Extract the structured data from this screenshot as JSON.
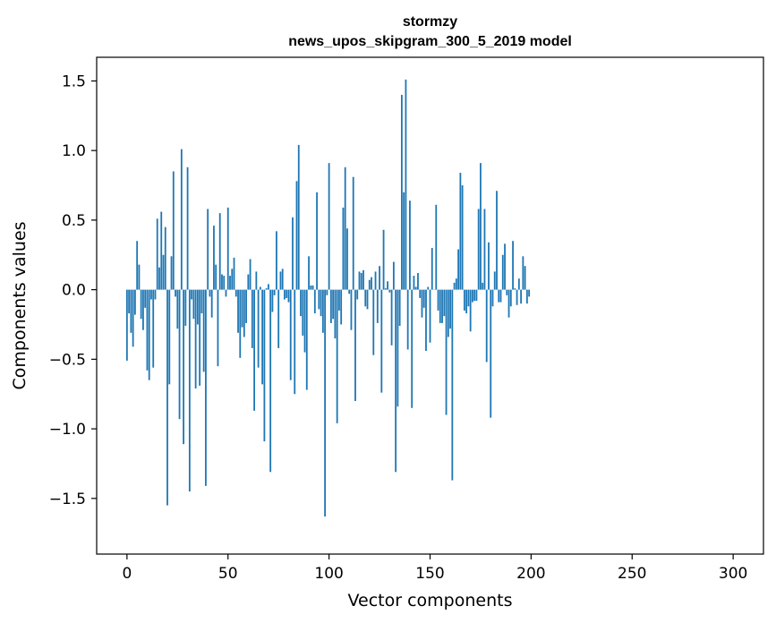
{
  "chart_data": {
    "type": "bar",
    "title_line1": "stormzy",
    "title_line2": "news_upos_skipgram_300_5_2019 model",
    "xlabel": "Vector components",
    "ylabel": "Components values",
    "xlim": [
      -15,
      315
    ],
    "ylim": [
      -1.9,
      1.67
    ],
    "xticks": [
      0,
      50,
      100,
      150,
      200,
      250,
      300
    ],
    "xtick_labels": [
      "0",
      "50",
      "100",
      "150",
      "200",
      "250",
      "300"
    ],
    "yticks": [
      -1.5,
      -1.0,
      -0.5,
      0.0,
      0.5,
      1.0,
      1.5
    ],
    "ytick_labels": [
      "−1.5",
      "−1.0",
      "−0.5",
      "0.0",
      "0.5",
      "1.0",
      "1.5"
    ],
    "bar_color": "#1f77b4",
    "grid": false,
    "values": [
      -0.51,
      -0.17,
      -0.31,
      -0.41,
      -0.18,
      0.35,
      0.18,
      -0.21,
      -0.29,
      -0.13,
      -0.58,
      -0.65,
      -0.07,
      -0.56,
      -0.07,
      0.51,
      0.16,
      0.56,
      0.25,
      0.45,
      -1.55,
      -0.68,
      0.24,
      0.85,
      -0.05,
      -0.28,
      -0.93,
      1.01,
      -1.11,
      -0.26,
      0.88,
      -1.45,
      -0.07,
      -0.21,
      -0.71,
      -0.25,
      -0.69,
      -0.17,
      -0.59,
      -1.41,
      0.58,
      -0.05,
      -0.2,
      0.46,
      0.18,
      -0.55,
      0.55,
      0.11,
      0.1,
      -0.05,
      0.59,
      0.1,
      0.15,
      0.23,
      -0.05,
      -0.31,
      -0.49,
      -0.27,
      -0.34,
      -0.24,
      0.11,
      0.22,
      -0.42,
      -0.87,
      0.13,
      -0.56,
      0.02,
      -0.68,
      -1.09,
      0.01,
      0.04,
      -1.31,
      -0.16,
      -0.04,
      0.42,
      -0.42,
      0.13,
      0.15,
      -0.07,
      -0.06,
      -0.09,
      -0.65,
      0.52,
      -0.75,
      0.78,
      1.04,
      -0.19,
      -0.33,
      -0.45,
      -0.72,
      0.24,
      0.03,
      0.03,
      -0.17,
      0.7,
      -0.14,
      -0.19,
      -0.31,
      -1.63,
      -0.04,
      0.91,
      -0.24,
      -0.21,
      -0.35,
      -0.96,
      -0.15,
      -0.25,
      0.59,
      0.88,
      0.44,
      -0.03,
      -0.29,
      0.81,
      -0.8,
      -0.07,
      0.13,
      0.12,
      0.14,
      -0.12,
      -0.14,
      0.07,
      0.09,
      -0.47,
      0.13,
      -0.24,
      0.17,
      -0.74,
      0.43,
      0.01,
      0.06,
      -0.02,
      -0.4,
      0.2,
      -1.31,
      -0.84,
      -0.26,
      1.4,
      0.7,
      1.51,
      -0.43,
      0.64,
      -0.85,
      0.1,
      0.02,
      0.12,
      -0.06,
      -0.2,
      -0.13,
      -0.44,
      0.02,
      -0.38,
      0.3,
      0.0,
      0.61,
      -0.15,
      -0.24,
      -0.24,
      -0.19,
      -0.9,
      -0.34,
      -0.28,
      -1.37,
      0.05,
      0.08,
      0.29,
      0.84,
      0.75,
      -0.15,
      -0.17,
      -0.12,
      -0.3,
      -0.09,
      -0.08,
      -0.08,
      0.58,
      0.91,
      0.05,
      0.58,
      -0.52,
      0.34,
      -0.92,
      -0.12,
      0.13,
      0.71,
      -0.09,
      -0.09,
      0.25,
      0.33,
      -0.04,
      -0.2,
      -0.12,
      0.35,
      0.01,
      -0.11,
      0.08,
      -0.1,
      0.24,
      0.17,
      -0.1,
      -0.05
    ]
  }
}
